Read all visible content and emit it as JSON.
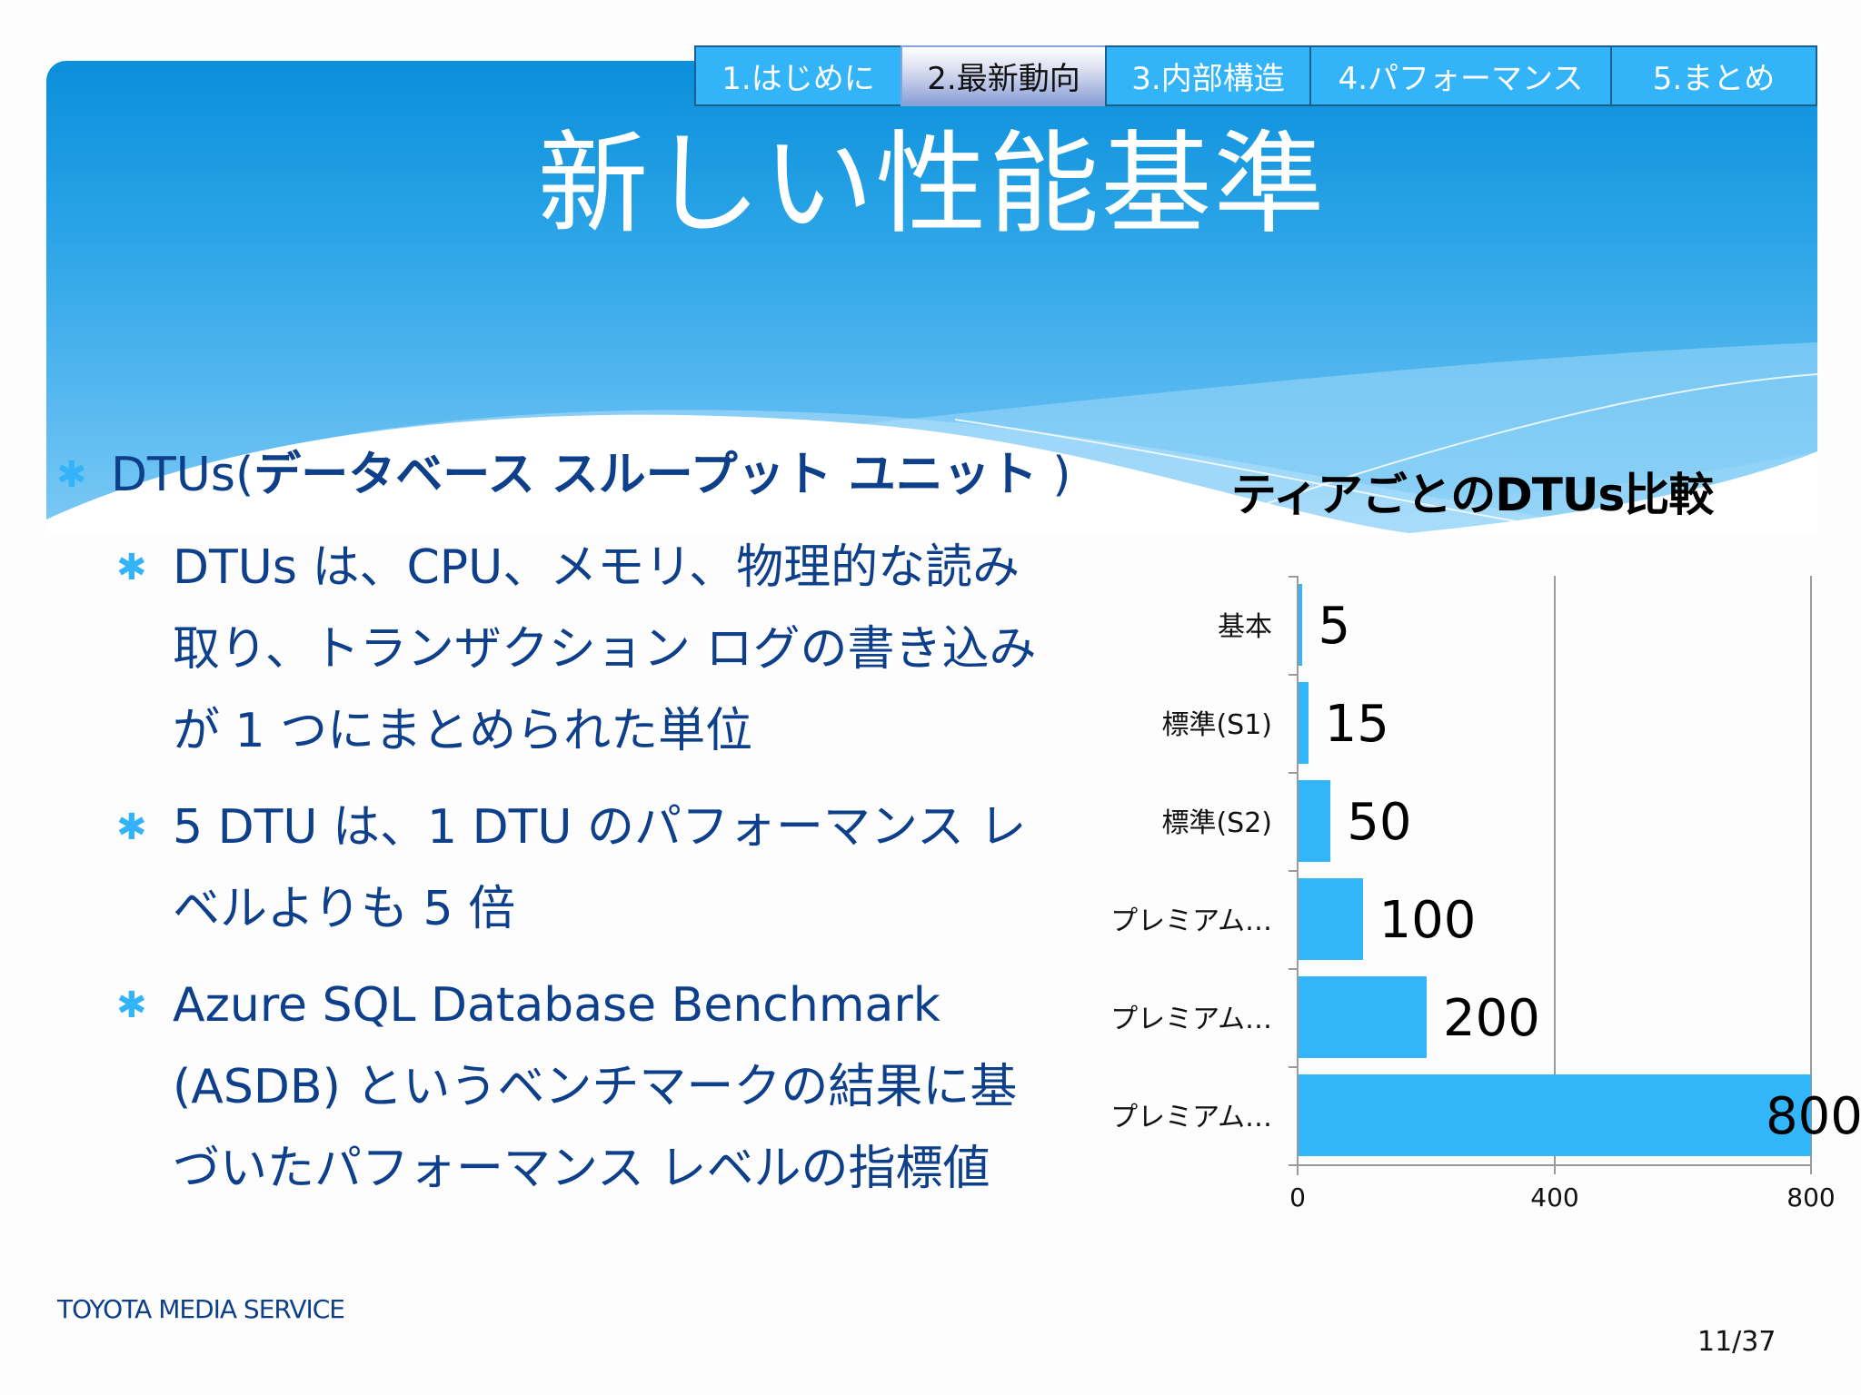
{
  "nav": {
    "tabs": [
      {
        "label": "1.はじめに",
        "active": false
      },
      {
        "label": "2.最新動向",
        "active": true
      },
      {
        "label": "3.内部構造",
        "active": false
      },
      {
        "label": "4.パフォーマンス",
        "active": false
      },
      {
        "label": "5.まとめ",
        "active": false
      }
    ]
  },
  "slide": {
    "title": "新しい性能基準",
    "bullets": {
      "main_prefix": "DTUs(",
      "main_bold": "データベース スループット ユニット",
      "main_suffix": " )",
      "sub": [
        {
          "lines": [
            "DTUs は、CPU、メモリ、物理的な読み",
            "取り、トランザクション ログの書き込み",
            "が 1 つにまとめられた単位"
          ]
        },
        {
          "lines": [
            "5 DTU は、1 DTU のパフォーマンス レ",
            "ベルよりも 5 倍"
          ]
        },
        {
          "lines": [
            "Azure SQL Database Benchmark",
            "(ASDB) というベンチマークの結果に基",
            "づいたパフォーマンス レベルの指標値"
          ]
        }
      ],
      "bullet_icon": "asterisk-icon"
    }
  },
  "chart_data": {
    "type": "bar",
    "orientation": "horizontal",
    "title": "ティアごとのDTUs比較",
    "categories": [
      "基本",
      "標準(S1)",
      "標準(S2)",
      "プレミアム…",
      "プレミアム…",
      "プレミアム…"
    ],
    "values": [
      5,
      15,
      50,
      100,
      200,
      800
    ],
    "value_labels": [
      "5",
      "15",
      "50",
      "100",
      "200",
      "800"
    ],
    "xlabel": "",
    "ylabel": "",
    "xlim": [
      0,
      800
    ],
    "x_ticks": [
      "0",
      "400",
      "800"
    ],
    "grid": true,
    "legend": null,
    "bar_color": "#33b5fa"
  },
  "footer": {
    "brand": "TOYOTA MEDIA SERVICE",
    "page": "11/37"
  },
  "colors": {
    "header_top": "#0a8fdb",
    "header_bottom": "#7ccaf5",
    "tab_bg": "#33b4f8",
    "body_text": "#0d3f8a",
    "bullet": "#33b4f8"
  }
}
